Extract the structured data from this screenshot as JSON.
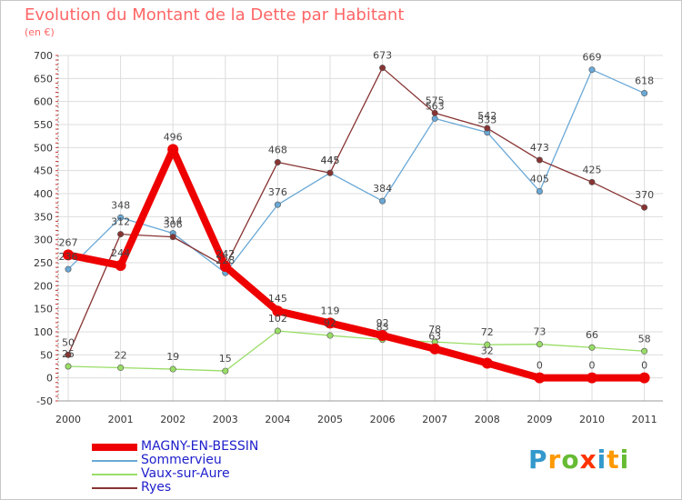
{
  "title": "Evolution du Montant de la Dette par Habitant",
  "subtitle": "(en €)",
  "brand": {
    "letters": [
      "P",
      "r",
      "o",
      "x",
      "i",
      "t",
      "i"
    ],
    "colors": [
      "#3399cc",
      "#ff9900",
      "#66bb33",
      "#ff3300",
      "#3399cc",
      "#ff9900",
      "#66bb33"
    ]
  },
  "chart_data": {
    "type": "line",
    "title": "Evolution du Montant de la Dette par Habitant",
    "subtitle": "(en €)",
    "x": [
      "2000",
      "2001",
      "2002",
      "2003",
      "2004",
      "2005",
      "2006",
      "2007",
      "2008",
      "2009",
      "2010",
      "2011"
    ],
    "ylim": [
      -50,
      700
    ],
    "yticks": [
      -50,
      0,
      50,
      100,
      150,
      200,
      250,
      300,
      350,
      400,
      450,
      500,
      550,
      600,
      650,
      700
    ],
    "grid": true,
    "legend_position": "bottom-left",
    "series": [
      {
        "name": "MAGNY-EN-BESSIN",
        "color": "#ee0000",
        "width": 8,
        "values": [
          267,
          244,
          496,
          242,
          145,
          119,
          92,
          63,
          32,
          0,
          0,
          0
        ]
      },
      {
        "name": "Sommervieu",
        "color": "#6aa8d6",
        "width": 1.3,
        "values": [
          236,
          348,
          314,
          228,
          376,
          445,
          384,
          563,
          533,
          405,
          669,
          618
        ]
      },
      {
        "name": "Vaux-sur-Aure",
        "color": "#99dd66",
        "width": 1.3,
        "values": [
          25,
          22,
          19,
          15,
          102,
          92,
          83,
          78,
          72,
          73,
          66,
          58
        ]
      },
      {
        "name": "Ryes",
        "color": "#883333",
        "width": 1.3,
        "values": [
          50,
          312,
          306,
          242,
          468,
          445,
          673,
          575,
          542,
          473,
          425,
          370
        ]
      }
    ],
    "data_labels": [
      {
        "series": 0,
        "labels": [
          "267",
          "244",
          "496",
          "242",
          "145",
          "119",
          "92",
          "63",
          "32",
          "0",
          "0",
          "0"
        ]
      },
      {
        "series": 1,
        "labels": [
          "236",
          "348",
          "314",
          "228",
          "376",
          "445",
          "384",
          "563",
          "533",
          "405",
          "669",
          "618"
        ]
      },
      {
        "series": 2,
        "labels": [
          "25",
          "22",
          "19",
          "15",
          "102",
          "92",
          "83",
          "78",
          "72",
          "73",
          "66",
          "58"
        ]
      },
      {
        "series": 3,
        "labels": [
          "50",
          "312",
          "306",
          "242",
          "468",
          "445",
          "673",
          "575",
          "542",
          "473",
          "425",
          "370"
        ]
      }
    ]
  }
}
